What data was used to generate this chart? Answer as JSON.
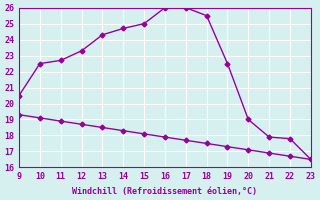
{
  "x_main": [
    9,
    10,
    11,
    12,
    13,
    14,
    15,
    16,
    17,
    18,
    19,
    20,
    21,
    22,
    23
  ],
  "y_main": [
    20.5,
    22.5,
    22.7,
    23.3,
    24.3,
    24.7,
    25.0,
    26.0,
    26.0,
    25.5,
    22.5,
    19.0,
    17.9,
    17.8,
    16.5
  ],
  "x_line2": [
    9,
    10,
    11,
    12,
    13,
    14,
    15,
    16,
    17,
    18,
    19,
    20,
    21,
    22,
    23
  ],
  "y_line2": [
    19.3,
    19.1,
    18.9,
    18.7,
    18.5,
    18.3,
    18.1,
    17.9,
    17.7,
    17.5,
    17.3,
    17.1,
    16.9,
    16.7,
    16.5
  ],
  "line_color": "#990099",
  "bg_color": "#d6f0f0",
  "xlim": [
    9,
    23
  ],
  "ylim": [
    16,
    26
  ],
  "xlabel": "Windchill (Refroidissement éolien,°C)",
  "yticks": [
    16,
    17,
    18,
    19,
    20,
    21,
    22,
    23,
    24,
    25,
    26
  ],
  "xticks": [
    9,
    10,
    11,
    12,
    13,
    14,
    15,
    16,
    17,
    18,
    19,
    20,
    21,
    22,
    23
  ]
}
